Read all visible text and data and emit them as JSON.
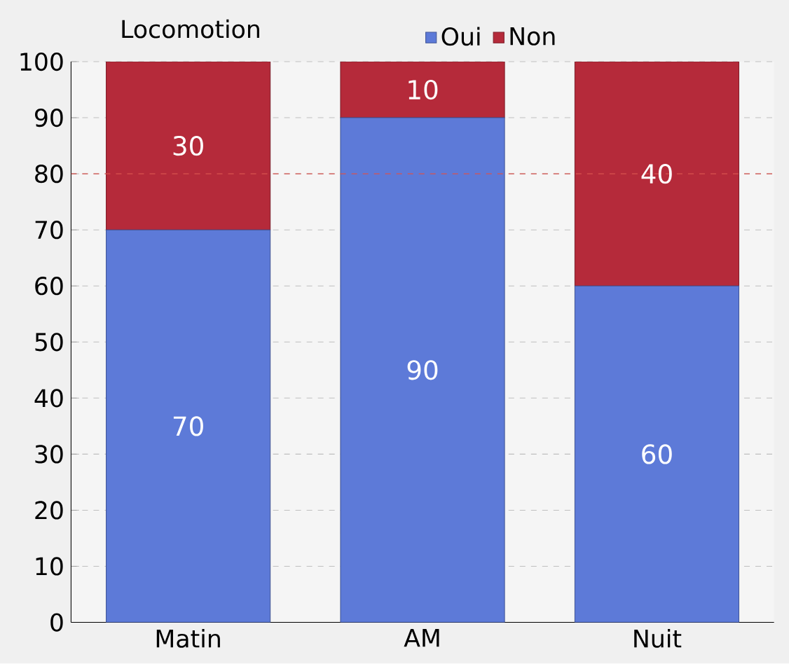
{
  "chart_data": {
    "type": "bar",
    "title": "Locomotion",
    "stacked": true,
    "categories": [
      "Matin",
      "AM",
      "Nuit"
    ],
    "series": [
      {
        "name": "Oui",
        "color": "#5d7ad8",
        "values": [
          70,
          90,
          60
        ]
      },
      {
        "name": "Non",
        "color": "#b52a3a",
        "values": [
          30,
          10,
          40
        ]
      }
    ],
    "ylim": [
      0,
      100
    ],
    "yticks": [
      0,
      10,
      20,
      30,
      40,
      50,
      60,
      70,
      80,
      90,
      100
    ],
    "ref_lines": [
      {
        "axis": "y",
        "value": 80,
        "color": "#d9534f",
        "line_style": "dashed"
      }
    ],
    "data_labels": true,
    "grid": "y",
    "legend": "top"
  }
}
